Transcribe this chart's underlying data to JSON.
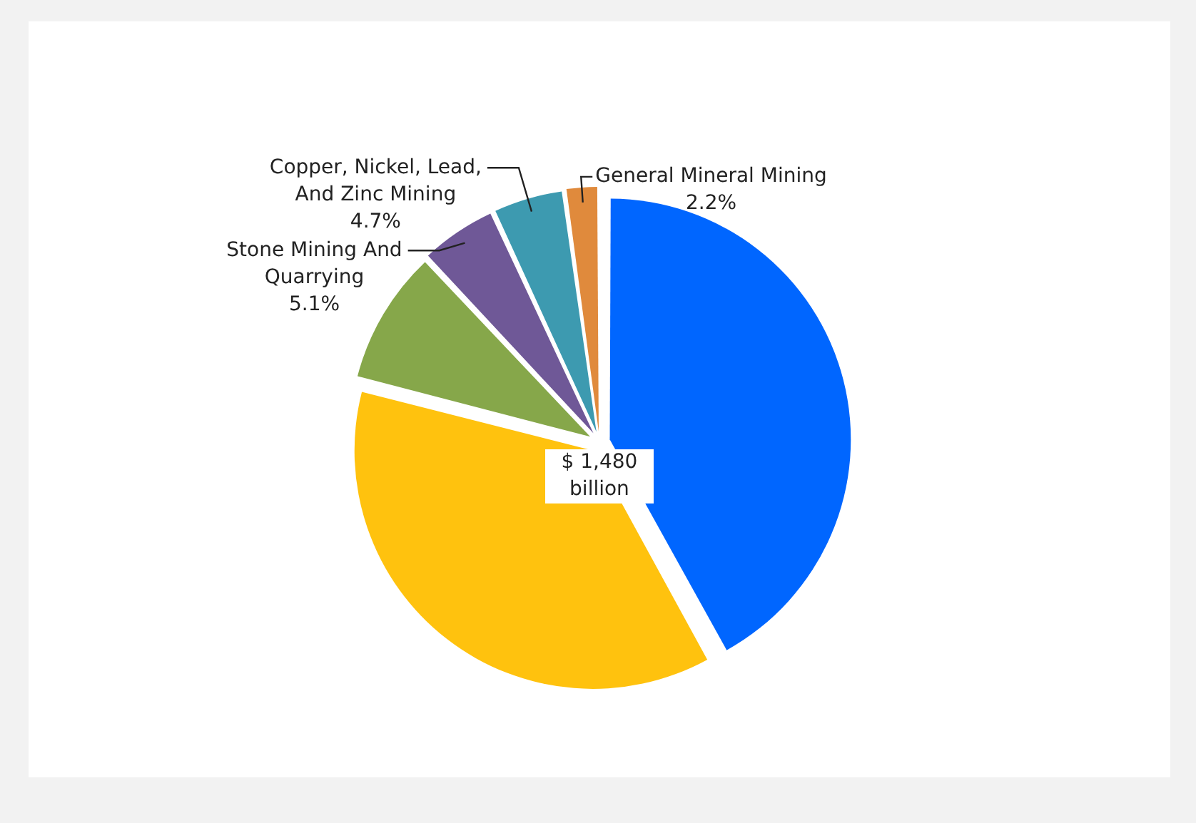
{
  "chart_data": {
    "type": "pie",
    "categories": [
      null,
      null,
      null,
      "Stone Mining And Quarrying",
      "Copper, Nickel, Lead, And Zinc Mining",
      "General Mineral Mining"
    ],
    "values": [
      42,
      37,
      9,
      5.1,
      4.7,
      2.2
    ],
    "value_labels": [
      null,
      null,
      null,
      "5.1%",
      "4.7%",
      "2.2%"
    ],
    "colors": [
      "#0066ff",
      "#ffc20e",
      "#86a74a",
      "#6f5897",
      "#3d9ab0",
      "#e08a3c"
    ],
    "annotations": [
      "$ 1,480 billion"
    ],
    "legend": false
  }
}
